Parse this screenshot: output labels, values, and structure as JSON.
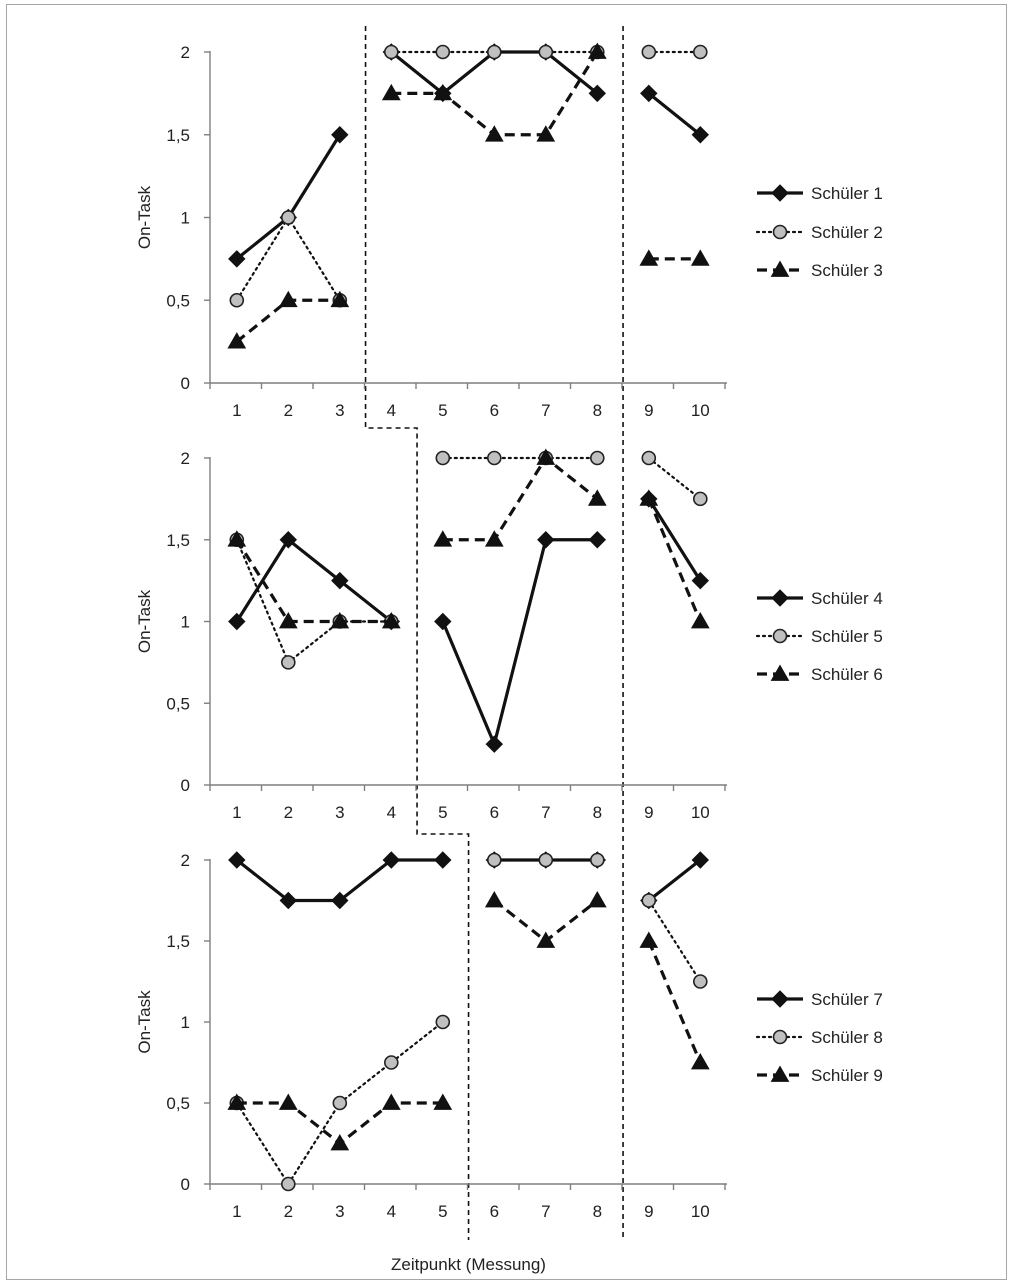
{
  "chart_data": [
    {
      "type": "line",
      "ylabel": "On-Task",
      "ylim": [
        0,
        2
      ],
      "yticks": [
        "0",
        "0,5",
        "1",
        "1,5",
        "2"
      ],
      "x": [
        1,
        2,
        3,
        4,
        5,
        6,
        7,
        8,
        9,
        10
      ],
      "xtick_labels": [
        "1",
        "2",
        "3",
        "4",
        "5",
        "6",
        "7",
        "8",
        "9",
        "10"
      ],
      "phase_boundaries": [
        3.5,
        8.5
      ],
      "series": [
        {
          "name": "Schüler 1",
          "style": "solid-diamond",
          "values": [
            0.75,
            1,
            1.5,
            2,
            1.75,
            2,
            2,
            1.75,
            1.75,
            1.5
          ]
        },
        {
          "name": "Schüler 2",
          "style": "dotted-circle",
          "values": [
            0.5,
            1,
            0.5,
            2,
            2,
            2,
            2,
            2,
            2,
            2
          ]
        },
        {
          "name": "Schüler 3",
          "style": "dashed-triangle",
          "values": [
            0.25,
            0.5,
            0.5,
            1.75,
            1.75,
            1.5,
            1.5,
            2,
            0.75,
            0.75
          ]
        }
      ]
    },
    {
      "type": "line",
      "ylabel": "On-Task",
      "ylim": [
        0,
        2
      ],
      "yticks": [
        "0",
        "0,5",
        "1",
        "1,5",
        "2"
      ],
      "x": [
        1,
        2,
        3,
        4,
        5,
        6,
        7,
        8,
        9,
        10
      ],
      "xtick_labels": [
        "1",
        "2",
        "3",
        "4",
        "5",
        "6",
        "7",
        "8",
        "9",
        "10"
      ],
      "phase_boundaries": [
        4.5,
        8.5
      ],
      "series": [
        {
          "name": "Schüler 4",
          "style": "solid-diamond",
          "values": [
            1,
            1.5,
            1.25,
            1,
            1,
            0.25,
            1.5,
            1.5,
            1.75,
            1.25
          ]
        },
        {
          "name": "Schüler 5",
          "style": "dotted-circle",
          "values": [
            1.5,
            0.75,
            1,
            1,
            2,
            2,
            2,
            2,
            2,
            1.75
          ]
        },
        {
          "name": "Schüler 6",
          "style": "dashed-triangle",
          "values": [
            1.5,
            1,
            1,
            1,
            1.5,
            1.5,
            2,
            1.75,
            1.75,
            1
          ]
        }
      ]
    },
    {
      "type": "line",
      "ylabel": "On-Task",
      "xlabel": "Zeitpunkt (Messung)",
      "ylim": [
        0,
        2
      ],
      "yticks": [
        "0",
        "0,5",
        "1",
        "1,5",
        "2"
      ],
      "x": [
        1,
        2,
        3,
        4,
        5,
        6,
        7,
        8,
        9,
        10
      ],
      "xtick_labels": [
        "1",
        "2",
        "3",
        "4",
        "5",
        "6",
        "7",
        "8",
        "9",
        "10"
      ],
      "phase_boundaries": [
        5.5,
        8.5
      ],
      "series": [
        {
          "name": "Schüler 7",
          "style": "solid-diamond",
          "values": [
            2,
            1.75,
            1.75,
            2,
            2,
            2,
            2,
            2,
            1.75,
            2
          ]
        },
        {
          "name": "Schüler 8",
          "style": "dotted-circle",
          "values": [
            0.5,
            0,
            0.5,
            0.75,
            1,
            2,
            2,
            2,
            1.75,
            1.25
          ]
        },
        {
          "name": "Schüler 9",
          "style": "dashed-triangle",
          "values": [
            0.5,
            0.5,
            0.25,
            0.5,
            0.5,
            1.75,
            1.5,
            1.75,
            1.5,
            0.75
          ]
        }
      ]
    }
  ]
}
